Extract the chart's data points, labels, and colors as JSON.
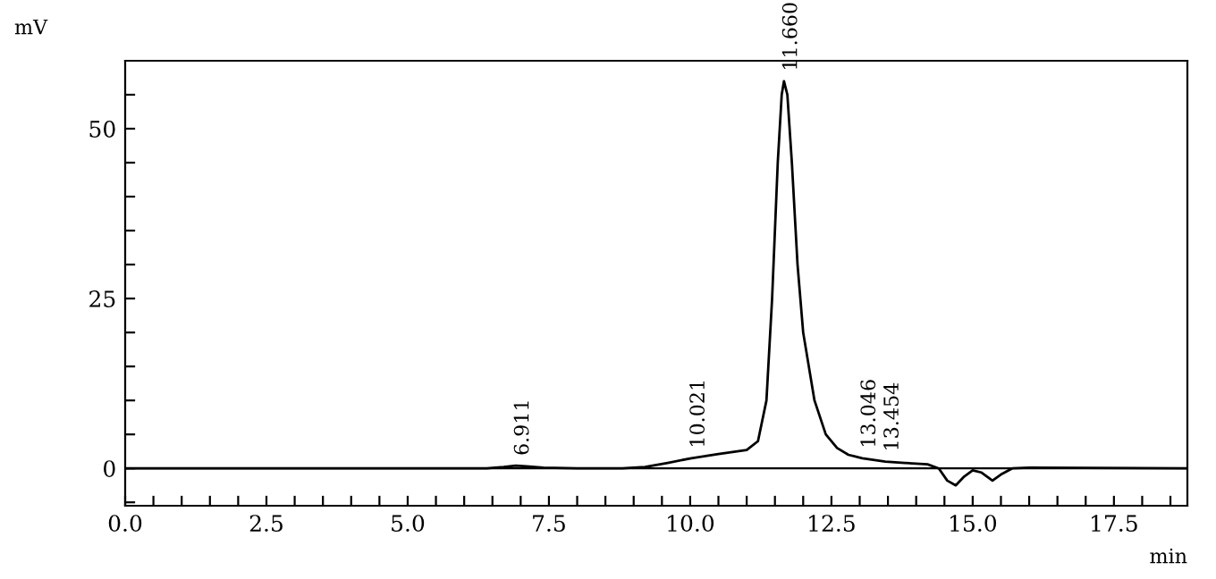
{
  "chart_data": {
    "type": "line",
    "xlabel": "min",
    "ylabel": "mV",
    "x": [
      0,
      6.4,
      6.7,
      6.911,
      7.1,
      7.4,
      8.0,
      8.8,
      9.2,
      9.6,
      10.021,
      10.5,
      11.0,
      11.2,
      11.35,
      11.45,
      11.55,
      11.62,
      11.66,
      11.72,
      11.8,
      11.9,
      12.0,
      12.2,
      12.4,
      12.6,
      12.8,
      13.046,
      13.454,
      13.8,
      14.2,
      14.4,
      14.55,
      14.7,
      14.85,
      15.0,
      15.15,
      15.35,
      15.5,
      15.7,
      16.0,
      18.8
    ],
    "series": [
      {
        "color": "#000000",
        "values": [
          0,
          0,
          0.2,
          0.4,
          0.3,
          0.1,
          0,
          0,
          0.2,
          0.8,
          1.5,
          2.1,
          2.7,
          4,
          10,
          25,
          45,
          55,
          57,
          55,
          45,
          30,
          20,
          10,
          5,
          3,
          2,
          1.5,
          1.0,
          0.8,
          0.6,
          0,
          -1.8,
          -2.5,
          -1.2,
          -0.3,
          -0.6,
          -1.8,
          -0.9,
          0,
          0.1,
          0
        ]
      }
    ],
    "xlim": [
      0,
      18.8
    ],
    "ylim": [
      -5.5,
      60
    ],
    "xticks": [
      {
        "value": 0,
        "label": "0.0"
      },
      {
        "value": 0.5,
        "label": null
      },
      {
        "value": 1,
        "label": null
      },
      {
        "value": 1.5,
        "label": null
      },
      {
        "value": 2,
        "label": null
      },
      2.5,
      {
        "value": 3,
        "label": null
      },
      {
        "value": 3.5,
        "label": null
      },
      {
        "value": 4,
        "label": null
      },
      {
        "value": 4.5,
        "label": null
      },
      {
        "value": 5,
        "label": "5.0"
      },
      {
        "value": 5.5,
        "label": null
      },
      {
        "value": 6,
        "label": null
      },
      {
        "value": 6.5,
        "label": null
      },
      {
        "value": 7,
        "label": null
      },
      7.5,
      {
        "value": 8,
        "label": null
      },
      {
        "value": 8.5,
        "label": null
      },
      {
        "value": 9,
        "label": null
      },
      {
        "value": 9.5,
        "label": null
      },
      {
        "value": 10,
        "label": "10.0"
      },
      {
        "value": 10.5,
        "label": null
      },
      {
        "value": 11,
        "label": null
      },
      {
        "value": 11.5,
        "label": null
      },
      {
        "value": 12,
        "label": null
      },
      12.5,
      {
        "value": 13,
        "label": null
      },
      {
        "value": 13.5,
        "label": null
      },
      {
        "value": 14,
        "label": null
      },
      {
        "value": 14.5,
        "label": null
      },
      {
        "value": 15,
        "label": "15.0"
      },
      {
        "value": 15.5,
        "label": null
      },
      {
        "value": 16,
        "label": null
      },
      {
        "value": 16.5,
        "label": null
      },
      {
        "value": 17,
        "label": null
      },
      17.5,
      {
        "value": 18,
        "label": null
      },
      {
        "value": 18.5,
        "label": null
      }
    ],
    "yticks": [
      {
        "value": -5,
        "label": null
      },
      0,
      {
        "value": 5,
        "label": null
      },
      {
        "value": 10,
        "label": null
      },
      {
        "value": 15,
        "label": null
      },
      {
        "value": 20,
        "label": null
      },
      25,
      {
        "value": 30,
        "label": null
      },
      {
        "value": 35,
        "label": null
      },
      {
        "value": 40,
        "label": null
      },
      {
        "value": 45,
        "label": null
      },
      50,
      {
        "value": 55,
        "label": null
      }
    ],
    "ref_lines": [
      {
        "axis": "y",
        "value": 0,
        "color": "#000000"
      }
    ],
    "annotations": [
      {
        "text": "6.911",
        "x": 6.911,
        "y": 0.4
      },
      {
        "text": "10.021",
        "x": 10.021,
        "y": 1.5
      },
      {
        "text": "11.660",
        "x": 11.66,
        "y": 57
      },
      {
        "text": "13.046",
        "x": 13.046,
        "y": 1.5
      },
      {
        "text": "13.454",
        "x": 13.454,
        "y": 1.0
      }
    ],
    "grid": false,
    "legend": false,
    "marker": "none",
    "line_style": "solid"
  }
}
